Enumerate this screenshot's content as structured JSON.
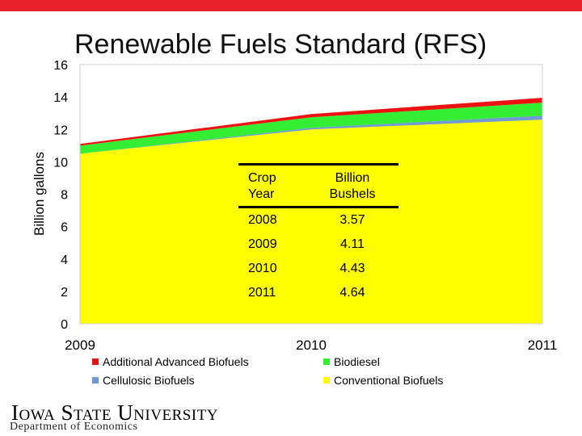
{
  "slide": {
    "title": "Renewable Fuels Standard (RFS)",
    "footer": {
      "logo_text": "Iowa State University",
      "department": "Department of Economics"
    }
  },
  "chart_data": {
    "type": "area",
    "stacked": true,
    "x": [
      2009,
      2010,
      2011
    ],
    "x_tick_labels": [
      "2009",
      "2010",
      "2011"
    ],
    "ylabel": "Billion gallons",
    "ylim": [
      0,
      16
    ],
    "y_ticks": [
      0,
      2,
      4,
      6,
      8,
      10,
      12,
      14,
      16
    ],
    "series": [
      {
        "name": "Conventional Biofuels",
        "color": "#ffff00",
        "values": [
          10.5,
          12.0,
          12.6
        ]
      },
      {
        "name": "Cellulosic Biofuels",
        "color": "#6f9bd1",
        "values": [
          0.0,
          0.1,
          0.25
        ]
      },
      {
        "name": "Biodiesel",
        "color": "#33ee33",
        "values": [
          0.5,
          0.65,
          0.8
        ]
      },
      {
        "name": "Additional Advanced Biofuels",
        "color": "#ee1111",
        "values": [
          0.1,
          0.2,
          0.3
        ]
      }
    ],
    "legend_order": [
      "Additional Advanced Biofuels",
      "Biodiesel",
      "Cellulosic Biofuels",
      "Conventional Biofuels"
    ],
    "legend_position": "bottom"
  },
  "table": {
    "headers": [
      "Crop Year",
      "Billion Bushels"
    ],
    "rows": [
      [
        "2008",
        "3.57"
      ],
      [
        "2009",
        "4.11"
      ],
      [
        "2010",
        "4.43"
      ],
      [
        "2011",
        "4.64"
      ]
    ]
  },
  "colors": {
    "accent": "#e8202a",
    "plot_border": "#d0d0d0"
  }
}
